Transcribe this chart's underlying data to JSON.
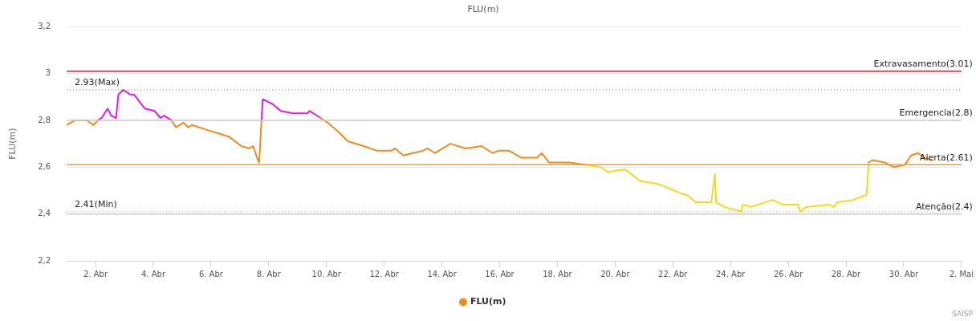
{
  "chart_data": {
    "type": "line",
    "title": "FLU(m)",
    "ylabel": "FLU(m)",
    "xlim": [
      "--04-01",
      "--05-02"
    ],
    "xticks": [
      {
        "value": "--04-02",
        "label": "2. Abr"
      },
      {
        "value": "--04-04",
        "label": "4. Abr"
      },
      {
        "value": "--04-06",
        "label": "6. Abr"
      },
      {
        "value": "--04-08",
        "label": "8. Abr"
      },
      {
        "value": "--04-10",
        "label": "10. Abr"
      },
      {
        "value": "--04-12",
        "label": "12. Abr"
      },
      {
        "value": "--04-14",
        "label": "14. Abr"
      },
      {
        "value": "--04-16",
        "label": "16. Abr"
      },
      {
        "value": "--04-18",
        "label": "18. Abr"
      },
      {
        "value": "--04-20",
        "label": "20. Abr"
      },
      {
        "value": "--04-22",
        "label": "22. Abr"
      },
      {
        "value": "--04-24",
        "label": "24. Abr"
      },
      {
        "value": "--04-26",
        "label": "26. Abr"
      },
      {
        "value": "--04-28",
        "label": "28. Abr"
      },
      {
        "value": "--04-30",
        "label": "30. Abr"
      },
      {
        "value": "--05-02",
        "label": "2. Mai"
      }
    ],
    "ylim": [
      2.2,
      3.2
    ],
    "yticks": [
      {
        "value": 2.2,
        "label": "2,2"
      },
      {
        "value": 2.4,
        "label": "2,4"
      },
      {
        "value": 2.6,
        "label": "2,6"
      },
      {
        "value": 2.8,
        "label": "2,8"
      },
      {
        "value": 3.0,
        "label": "3"
      },
      {
        "value": 3.2,
        "label": "3,2"
      }
    ],
    "grid": "y",
    "legend": "bottom",
    "marker": "none",
    "line_style": "solid",
    "series": [
      {
        "name": "FLU(m)",
        "color": "#f08c1e",
        "x": [
          "--04-01T00:00",
          "--04-01T07:00",
          "--04-01T17:00",
          "--04-01T22:00",
          "--04-02T02:00",
          "--04-03T00:00",
          "--04-04T15:00",
          "--04-04T19:00",
          "--04-05T01:00",
          "--04-05T05:00",
          "--04-05T08:00",
          "--04-05T20:00",
          "--04-06T09:00",
          "--04-06T15:00",
          "--04-07T01:00",
          "--04-07T08:00",
          "--04-07T11:00",
          "--04-07T15:00",
          "--04-07T16:00",
          "--04-07T18:00",
          "--04-08T12:00",
          "--04-09T19:00",
          "--04-10T01:00",
          "--04-10T10:00",
          "--04-10T18:00",
          "--04-11T07:00",
          "--04-11T18:00",
          "--04-12T06:00",
          "--04-12T09:00",
          "--04-12T16:00",
          "--04-13T08:00",
          "--04-13T12:00",
          "--04-13T18:00",
          "--04-14T07:00",
          "--04-14T20:00",
          "--04-15T09:00",
          "--04-15T18:00",
          "--04-15T23:00",
          "--04-16T08:00",
          "--04-16T18:00",
          "--04-17T07:00",
          "--04-17T11:00",
          "--04-17T17:00",
          "--04-18T10:00",
          "--04-18T23:00",
          "--04-24T00:00",
          "--04-28T19:00",
          "--04-28T22:00",
          "--04-29T08:00",
          "--04-29T16:00",
          "--04-30T01:00",
          "--04-30T06:00",
          "--04-30T12:00",
          "--04-30T17:00",
          "--04-30T23:30"
        ],
        "values": [
          2.78,
          2.8,
          2.8,
          2.78,
          2.8,
          null,
          2.8,
          2.77,
          2.79,
          2.77,
          2.78,
          2.76,
          2.74,
          2.73,
          2.69,
          2.68,
          2.69,
          2.63,
          2.62,
          2.8,
          null,
          2.81,
          2.79,
          2.75,
          2.71,
          2.69,
          2.67,
          2.67,
          2.68,
          2.65,
          2.67,
          2.68,
          2.66,
          2.7,
          2.68,
          2.69,
          2.66,
          2.67,
          2.67,
          2.64,
          2.64,
          2.66,
          2.62,
          2.62,
          2.61,
          null,
          2.62,
          2.63,
          2.62,
          2.6,
          2.61,
          2.65,
          2.66,
          2.64,
          2.63
        ]
      },
      {
        "color": "#e619e6",
        "x": [
          "--04-02T02:00",
          "--04-02T05:00",
          "--04-02T10:00",
          "--04-02T13:00",
          "--04-02T17:00",
          "--04-02T19:00",
          "--04-02T23:00",
          "--04-03T05:00",
          "--04-03T08:00",
          "--04-03T17:00",
          "--04-04T01:00",
          "--04-04T06:00",
          "--04-04T09:00",
          "--04-04T15:00",
          "--04-06T00:00",
          "--04-07T18:00",
          "--04-07T19:00",
          "--04-08T03:00",
          "--04-08T10:00",
          "--04-08T20:00",
          "--04-09T08:00",
          "--04-09T10:00",
          "--04-09T19:00"
        ],
        "values": [
          2.8,
          2.81,
          2.85,
          2.82,
          2.81,
          2.91,
          2.93,
          2.91,
          2.91,
          2.85,
          2.84,
          2.81,
          2.82,
          2.8,
          null,
          2.8,
          2.89,
          2.87,
          2.84,
          2.83,
          2.83,
          2.84,
          2.81
        ]
      },
      {
        "color": "#f2dc1a",
        "x": [
          "--04-18T23:00",
          "--04-19T12:00",
          "--04-19T18:00",
          "--04-20T08:00",
          "--04-20T11:00",
          "--04-20T21:00",
          "--04-21T10:00",
          "--04-21T16:00",
          "--04-22T06:00",
          "--04-22T12:00",
          "--04-22T19:00",
          "--04-23T08:00",
          "--04-23T11:00",
          "--04-23T12:00",
          "--04-23T19:00",
          "--04-24T09:00",
          "--04-24T10:00",
          "--04-24T17:00",
          "--04-25T11:00",
          "--04-25T19:00",
          "--04-26T08:00",
          "--04-26T10:00",
          "--04-26T15:00",
          "--04-27T10:00",
          "--04-27T14:00",
          "--04-27T17:00",
          "--04-28T06:00",
          "--04-28T16:00",
          "--04-28T17:00",
          "--04-28T19:00"
        ],
        "values": [
          2.61,
          2.6,
          2.58,
          2.59,
          2.58,
          2.54,
          2.53,
          2.52,
          2.49,
          2.48,
          2.45,
          2.45,
          2.57,
          2.45,
          2.43,
          2.41,
          2.44,
          2.43,
          2.46,
          2.44,
          2.44,
          2.41,
          2.43,
          2.44,
          2.43,
          2.45,
          2.46,
          2.48,
          2.48,
          2.62
        ]
      }
    ],
    "ref_lines": [
      {
        "axis": "y",
        "value": 3.01,
        "label": "Extravasamento(3.01)",
        "color": "#d2203c",
        "line_style": "solid"
      },
      {
        "axis": "y",
        "value": 2.93,
        "label": "2.93(Max)",
        "color": "#999999",
        "line_style": "dotted"
      },
      {
        "axis": "y",
        "value": 2.8,
        "label": "Emergencia(2.8)",
        "color": "#cccccc",
        "line_style": "solid"
      },
      {
        "axis": "y",
        "value": 2.61,
        "label": "Alerta(2.61)",
        "color": "#f0a030",
        "line_style": "solid"
      },
      {
        "axis": "y",
        "value": 2.41,
        "label": "2.41(Min)",
        "color": "#bbbbbb",
        "line_style": "dotted"
      },
      {
        "axis": "y",
        "value": 2.4,
        "label": "Atenção(2.4)",
        "color": "#cccccc",
        "line_style": "solid"
      }
    ],
    "annotations": [
      "SAISP"
    ]
  }
}
